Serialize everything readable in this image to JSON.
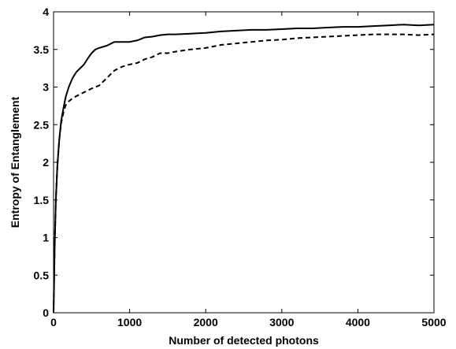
{
  "chart_data": {
    "type": "line",
    "title": "",
    "xlabel": "Number of detected photons",
    "ylabel": "Entropy of Entanglement",
    "xlim": [
      0,
      5000
    ],
    "ylim": [
      0,
      4
    ],
    "xticks": [
      "0",
      "1000",
      "2000",
      "3000",
      "4000",
      "5000"
    ],
    "yticks": [
      "0",
      "0.5",
      "1",
      "1.5",
      "2",
      "2.5",
      "3",
      "3.5",
      "4"
    ],
    "grid": false,
    "legend": "none",
    "series": [
      {
        "style": "solid",
        "color": "#000000",
        "x": [
          0,
          15,
          30,
          50,
          75,
          100,
          130,
          160,
          200,
          250,
          300,
          350,
          400,
          450,
          500,
          550,
          600,
          700,
          800,
          900,
          1000,
          1100,
          1200,
          1300,
          1400,
          1500,
          1600,
          1800,
          2000,
          2200,
          2400,
          2600,
          2800,
          3000,
          3200,
          3400,
          3600,
          3800,
          4000,
          4200,
          4400,
          4600,
          4800,
          5000
        ],
        "y": [
          0,
          0.9,
          1.5,
          1.95,
          2.3,
          2.55,
          2.72,
          2.87,
          3.0,
          3.12,
          3.2,
          3.25,
          3.3,
          3.38,
          3.45,
          3.5,
          3.52,
          3.55,
          3.6,
          3.6,
          3.6,
          3.62,
          3.66,
          3.67,
          3.69,
          3.7,
          3.7,
          3.71,
          3.72,
          3.74,
          3.75,
          3.76,
          3.76,
          3.77,
          3.78,
          3.78,
          3.79,
          3.8,
          3.8,
          3.81,
          3.82,
          3.83,
          3.82,
          3.83
        ]
      },
      {
        "style": "dashed",
        "color": "#000000",
        "x": [
          0,
          15,
          30,
          50,
          75,
          100,
          130,
          160,
          200,
          250,
          300,
          400,
          500,
          600,
          700,
          800,
          900,
          1000,
          1100,
          1200,
          1300,
          1400,
          1500,
          1600,
          1800,
          2000,
          2200,
          2400,
          2600,
          2800,
          3000,
          3200,
          3400,
          3600,
          3800,
          4000,
          4200,
          4400,
          4600,
          4800,
          5000
        ],
        "y": [
          0,
          0.9,
          1.5,
          1.95,
          2.3,
          2.52,
          2.66,
          2.76,
          2.81,
          2.85,
          2.88,
          2.93,
          2.98,
          3.02,
          3.12,
          3.22,
          3.27,
          3.3,
          3.32,
          3.37,
          3.4,
          3.45,
          3.45,
          3.47,
          3.5,
          3.52,
          3.56,
          3.58,
          3.6,
          3.62,
          3.63,
          3.65,
          3.66,
          3.67,
          3.68,
          3.69,
          3.7,
          3.7,
          3.7,
          3.69,
          3.7
        ]
      }
    ]
  }
}
